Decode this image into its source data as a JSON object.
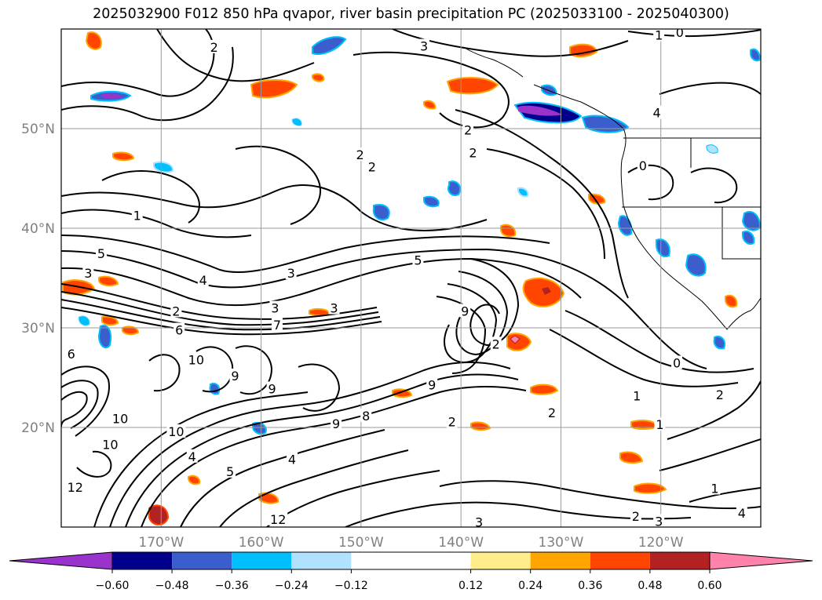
{
  "chart_data": {
    "type": "heatmap",
    "title": "2025032900 F012 850 hPa qvapor, river basin precipitation PC (2025033100 - 2025040300)",
    "map": {
      "lon_range": [
        -180,
        -110
      ],
      "lat_range": [
        10,
        60
      ],
      "lat_ticks": [
        {
          "value": 20,
          "label": "20°N"
        },
        {
          "value": 30,
          "label": "30°N"
        },
        {
          "value": 40,
          "label": "40°N"
        },
        {
          "value": 50,
          "label": "50°N"
        }
      ],
      "lon_ticks": [
        {
          "value": -170,
          "label": "170°W"
        },
        {
          "value": -160,
          "label": "160°W"
        },
        {
          "value": -150,
          "label": "150°W"
        },
        {
          "value": -140,
          "label": "140°W"
        },
        {
          "value": -130,
          "label": "130°W"
        },
        {
          "value": -120,
          "label": "120°W"
        }
      ],
      "grid": true
    },
    "colorbar": {
      "orientation": "horizontal",
      "extend": "both",
      "boundaries": [
        -0.72,
        -0.6,
        -0.48,
        -0.36,
        -0.24,
        -0.12,
        0.12,
        0.24,
        0.36,
        0.48,
        0.6,
        0.72
      ],
      "colors": [
        "#9933cc",
        "#00008b",
        "#3a5fcd",
        "#00bfff",
        "#b0e2ff",
        "#ffffff",
        "#ffec8b",
        "#ffa500",
        "#ff4500",
        "#b22222",
        "#ff82ab"
      ],
      "tick_labels": [
        "−0.60",
        "−0.48",
        "−0.36",
        "−0.24",
        "−0.12",
        "0.12",
        "0.24",
        "0.36",
        "0.48",
        "0.60"
      ]
    },
    "contour_labels": [
      {
        "text": "1",
        "lon": -172.4,
        "lat": 41.3
      },
      {
        "text": "5",
        "lon": -176,
        "lat": 37.5
      },
      {
        "text": "3",
        "lon": -157,
        "lat": 35.5
      },
      {
        "text": "4",
        "lon": -165.8,
        "lat": 34.8
      },
      {
        "text": "3",
        "lon": -177.3,
        "lat": 35.5
      },
      {
        "text": "2",
        "lon": -168.5,
        "lat": 31.7
      },
      {
        "text": "3",
        "lon": -158.6,
        "lat": 32
      },
      {
        "text": "6",
        "lon": -168.2,
        "lat": 29.8
      },
      {
        "text": "7",
        "lon": -158.4,
        "lat": 30.3
      },
      {
        "text": "3",
        "lon": -152.7,
        "lat": 32
      },
      {
        "text": "5",
        "lon": -144.3,
        "lat": 36.8
      },
      {
        "text": "9",
        "lon": -139.6,
        "lat": 31.7
      },
      {
        "text": "2",
        "lon": -136.5,
        "lat": 28.4
      },
      {
        "text": "6",
        "lon": -179,
        "lat": 27.4
      },
      {
        "text": "10",
        "lon": -166.5,
        "lat": 26.8
      },
      {
        "text": "9",
        "lon": -162.6,
        "lat": 25.2
      },
      {
        "text": "9",
        "lon": -158.9,
        "lat": 23.9
      },
      {
        "text": "9",
        "lon": -142.9,
        "lat": 24.3
      },
      {
        "text": "10",
        "lon": -174.1,
        "lat": 20.9
      },
      {
        "text": "10",
        "lon": -168.5,
        "lat": 19.6
      },
      {
        "text": "10",
        "lon": -175.1,
        "lat": 18.3
      },
      {
        "text": "9",
        "lon": -152.5,
        "lat": 20.4
      },
      {
        "text": "8",
        "lon": -149.5,
        "lat": 21.2
      },
      {
        "text": "4",
        "lon": -166.9,
        "lat": 17.1
      },
      {
        "text": "5",
        "lon": -163.1,
        "lat": 15.6
      },
      {
        "text": "4",
        "lon": -156.9,
        "lat": 16.8
      },
      {
        "text": "12",
        "lon": -178.6,
        "lat": 14
      },
      {
        "text": "12",
        "lon": -158.3,
        "lat": 10.8
      },
      {
        "text": "2",
        "lon": -140.9,
        "lat": 20.6
      },
      {
        "text": "2",
        "lon": -130.9,
        "lat": 21.5
      },
      {
        "text": "1",
        "lon": -122.4,
        "lat": 23.2
      },
      {
        "text": "1",
        "lon": -120.1,
        "lat": 20.3
      },
      {
        "text": "0",
        "lon": -118.4,
        "lat": 26.5
      },
      {
        "text": "2",
        "lon": -114.1,
        "lat": 23.3
      },
      {
        "text": "1",
        "lon": -114.6,
        "lat": 13.9
      },
      {
        "text": "2",
        "lon": -122.5,
        "lat": 11.1
      },
      {
        "text": "3",
        "lon": -120.2,
        "lat": 10.6
      },
      {
        "text": "4",
        "lon": -111.9,
        "lat": 11.4
      },
      {
        "text": "3",
        "lon": -138.2,
        "lat": 10.5
      },
      {
        "text": "3",
        "lon": -143.7,
        "lat": 58.3
      },
      {
        "text": "2",
        "lon": -164.7,
        "lat": 58.2
      },
      {
        "text": "2",
        "lon": -139.3,
        "lat": 49.9
      },
      {
        "text": "2",
        "lon": -150.1,
        "lat": 47.4
      },
      {
        "text": "2",
        "lon": -148.9,
        "lat": 46.2
      },
      {
        "text": "2",
        "lon": -138.8,
        "lat": 47.6
      },
      {
        "text": "1",
        "lon": -120.2,
        "lat": 59.4
      },
      {
        "text": "4",
        "lon": -120.4,
        "lat": 51.6
      },
      {
        "text": "0",
        "lon": -118.1,
        "lat": 59.7
      },
      {
        "text": "0",
        "lon": -121.8,
        "lat": 46.3
      }
    ]
  }
}
